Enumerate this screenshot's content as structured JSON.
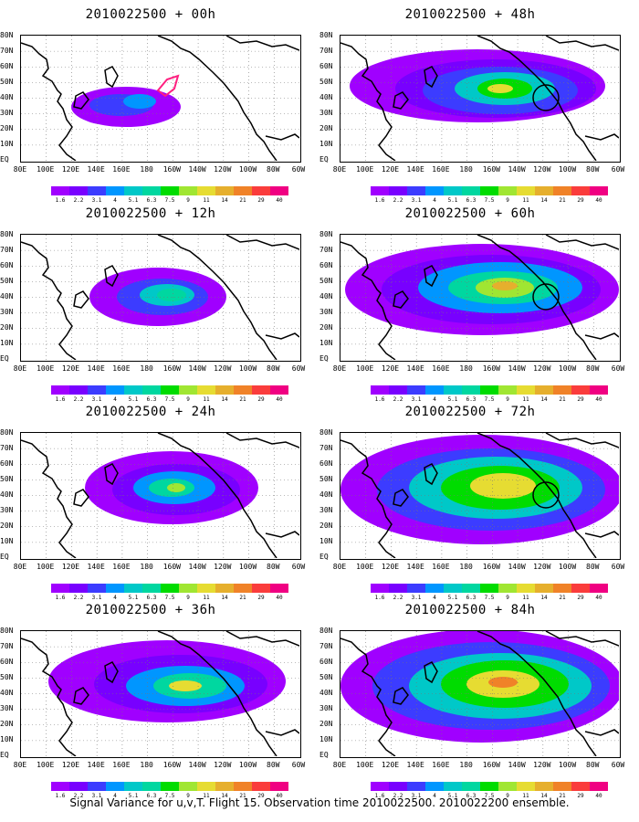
{
  "caption": "Signal Variance for u,v,T. Flight 15. Observation time 2010022500. 2010022200 ensemble.",
  "y_axis_labels": [
    "80N",
    "70N",
    "60N",
    "50N",
    "40N",
    "30N",
    "20N",
    "10N",
    "EQ"
  ],
  "x_axis_labels": [
    "80E",
    "100E",
    "120E",
    "140E",
    "160E",
    "180",
    "160W",
    "140W",
    "120W",
    "100W",
    "80W",
    "60W"
  ],
  "colorbar": {
    "labels": [
      "1.6",
      "2.2",
      "3.1",
      "4",
      "5.1",
      "6.3",
      "7.5",
      "9",
      "11",
      "14",
      "21",
      "29",
      "40"
    ],
    "colors": [
      "#a000ff",
      "#7800ff",
      "#3c3cff",
      "#0096ff",
      "#00c8c8",
      "#00d7a0",
      "#00dc00",
      "#a0e632",
      "#e6dc32",
      "#e6af2d",
      "#f08228",
      "#fa3c3c",
      "#f00082"
    ]
  },
  "panels": [
    {
      "title": "2010022500 + 00h",
      "marker": "red-polygon"
    },
    {
      "title": "2010022500 + 12h"
    },
    {
      "title": "2010022500 + 24h"
    },
    {
      "title": "2010022500 + 36h"
    },
    {
      "title": "2010022500 + 48h",
      "marker": "circle"
    },
    {
      "title": "2010022500 + 60h",
      "marker": "circle"
    },
    {
      "title": "2010022500 + 72h",
      "marker": "circle"
    },
    {
      "title": "2010022500 + 84h"
    }
  ]
}
